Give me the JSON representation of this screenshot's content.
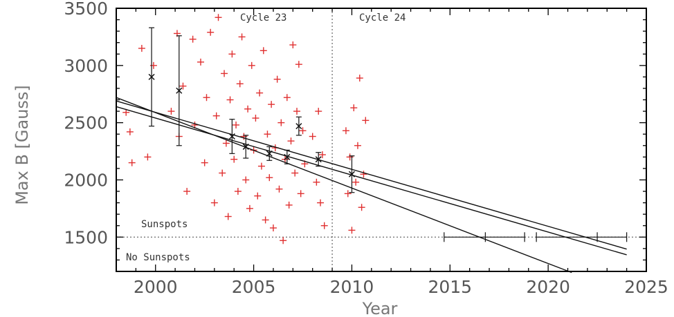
{
  "chart_data": {
    "type": "scatter",
    "title": "",
    "xlabel": "Year",
    "ylabel": "Max B [Gauss]",
    "xlim": [
      1998,
      2025
    ],
    "ylim": [
      1200,
      3500
    ],
    "xticks": [
      "2000",
      "2005",
      "2010",
      "2015",
      "2020",
      "2025"
    ],
    "yticks": [
      "1500",
      "2000",
      "2500",
      "3000",
      "3500"
    ],
    "annotations": {
      "cycle23": "Cycle 23",
      "cycle24": "Cycle 24",
      "sunspots": "Sunspots",
      "no_sunspots": "No Sunspots"
    },
    "cycle_boundary_year": 2009,
    "sunspot_threshold_gauss": 1500,
    "colors": {
      "points": "#e03030",
      "fits": "#111111",
      "frame": "#000000"
    },
    "measurements": [
      {
        "x": 1998.5,
        "y": 2590
      },
      {
        "x": 1998.7,
        "y": 2420
      },
      {
        "x": 1998.8,
        "y": 2150
      },
      {
        "x": 1999.3,
        "y": 3150
      },
      {
        "x": 1999.6,
        "y": 2200
      },
      {
        "x": 1999.9,
        "y": 3000
      },
      {
        "x": 2000.8,
        "y": 2600
      },
      {
        "x": 2001.1,
        "y": 3280
      },
      {
        "x": 2001.2,
        "y": 2380
      },
      {
        "x": 2001.4,
        "y": 2820
      },
      {
        "x": 2001.6,
        "y": 1900
      },
      {
        "x": 2001.9,
        "y": 3230
      },
      {
        "x": 2002.0,
        "y": 2480
      },
      {
        "x": 2002.3,
        "y": 3030
      },
      {
        "x": 2002.5,
        "y": 2150
      },
      {
        "x": 2002.6,
        "y": 2720
      },
      {
        "x": 2002.8,
        "y": 3290
      },
      {
        "x": 2003.0,
        "y": 1800
      },
      {
        "x": 2003.1,
        "y": 2560
      },
      {
        "x": 2003.2,
        "y": 3420
      },
      {
        "x": 2003.4,
        "y": 2060
      },
      {
        "x": 2003.5,
        "y": 2930
      },
      {
        "x": 2003.6,
        "y": 2320
      },
      {
        "x": 2003.7,
        "y": 1680
      },
      {
        "x": 2003.8,
        "y": 2700
      },
      {
        "x": 2003.9,
        "y": 3100
      },
      {
        "x": 2004.0,
        "y": 2180
      },
      {
        "x": 2004.1,
        "y": 2480
      },
      {
        "x": 2004.2,
        "y": 1900
      },
      {
        "x": 2004.3,
        "y": 2840
      },
      {
        "x": 2004.4,
        "y": 3250
      },
      {
        "x": 2004.5,
        "y": 2380
      },
      {
        "x": 2004.6,
        "y": 2000
      },
      {
        "x": 2004.7,
        "y": 2620
      },
      {
        "x": 2004.8,
        "y": 1750
      },
      {
        "x": 2004.9,
        "y": 3000
      },
      {
        "x": 2005.0,
        "y": 2260
      },
      {
        "x": 2005.1,
        "y": 2540
      },
      {
        "x": 2005.2,
        "y": 1860
      },
      {
        "x": 2005.3,
        "y": 2760
      },
      {
        "x": 2005.4,
        "y": 2120
      },
      {
        "x": 2005.5,
        "y": 3130
      },
      {
        "x": 2005.6,
        "y": 1650
      },
      {
        "x": 2005.7,
        "y": 2400
      },
      {
        "x": 2005.8,
        "y": 2020
      },
      {
        "x": 2005.9,
        "y": 2660
      },
      {
        "x": 2006.0,
        "y": 1580
      },
      {
        "x": 2006.1,
        "y": 2280
      },
      {
        "x": 2006.2,
        "y": 2880
      },
      {
        "x": 2006.3,
        "y": 1920
      },
      {
        "x": 2006.4,
        "y": 2500
      },
      {
        "x": 2006.5,
        "y": 1470
      },
      {
        "x": 2006.6,
        "y": 2180
      },
      {
        "x": 2006.7,
        "y": 2720
      },
      {
        "x": 2006.8,
        "y": 1780
      },
      {
        "x": 2006.9,
        "y": 2340
      },
      {
        "x": 2007.0,
        "y": 3180
      },
      {
        "x": 2007.1,
        "y": 2060
      },
      {
        "x": 2007.2,
        "y": 2600
      },
      {
        "x": 2007.3,
        "y": 3010
      },
      {
        "x": 2007.4,
        "y": 1880
      },
      {
        "x": 2007.5,
        "y": 2430
      },
      {
        "x": 2007.6,
        "y": 2140
      },
      {
        "x": 2008.0,
        "y": 2380
      },
      {
        "x": 2008.2,
        "y": 1980
      },
      {
        "x": 2008.3,
        "y": 2600
      },
      {
        "x": 2008.4,
        "y": 1800
      },
      {
        "x": 2008.5,
        "y": 2220
      },
      {
        "x": 2008.6,
        "y": 1600
      },
      {
        "x": 2009.7,
        "y": 2430
      },
      {
        "x": 2009.8,
        "y": 1880
      },
      {
        "x": 2009.9,
        "y": 2200
      },
      {
        "x": 2010.0,
        "y": 1560
      },
      {
        "x": 2010.1,
        "y": 2630
      },
      {
        "x": 2010.2,
        "y": 1980
      },
      {
        "x": 2010.3,
        "y": 2300
      },
      {
        "x": 2010.4,
        "y": 2890
      },
      {
        "x": 2010.5,
        "y": 1760
      },
      {
        "x": 2010.6,
        "y": 2050
      },
      {
        "x": 2010.7,
        "y": 2520
      }
    ],
    "averages": [
      {
        "x": 1999.8,
        "y": 2900,
        "err": 430
      },
      {
        "x": 2001.2,
        "y": 2780,
        "err": 480
      },
      {
        "x": 2003.9,
        "y": 2380,
        "err": 150
      },
      {
        "x": 2004.6,
        "y": 2290,
        "err": 100
      },
      {
        "x": 2005.8,
        "y": 2230,
        "err": 60
      },
      {
        "x": 2006.7,
        "y": 2200,
        "err": 60
      },
      {
        "x": 2007.3,
        "y": 2470,
        "err": 80
      },
      {
        "x": 2008.3,
        "y": 2180,
        "err": 60
      },
      {
        "x": 2010.0,
        "y": 2050,
        "err": 160
      }
    ],
    "fit_lines": [
      {
        "x": [
          1998,
          2024
        ],
        "y": [
          2690,
          1395
        ]
      },
      {
        "x": [
          1998,
          2024
        ],
        "y": [
          2640,
          1345
        ]
      },
      {
        "x": [
          1998,
          2021.2
        ],
        "y": [
          2720,
          1190
        ]
      }
    ],
    "threshold_crossings": [
      {
        "x": 2016.8,
        "xmin": 2014.7,
        "xmax": 2018.8
      },
      {
        "x": 2022.5,
        "xmin": 2019.4,
        "xmax": 2024.0
      }
    ]
  }
}
